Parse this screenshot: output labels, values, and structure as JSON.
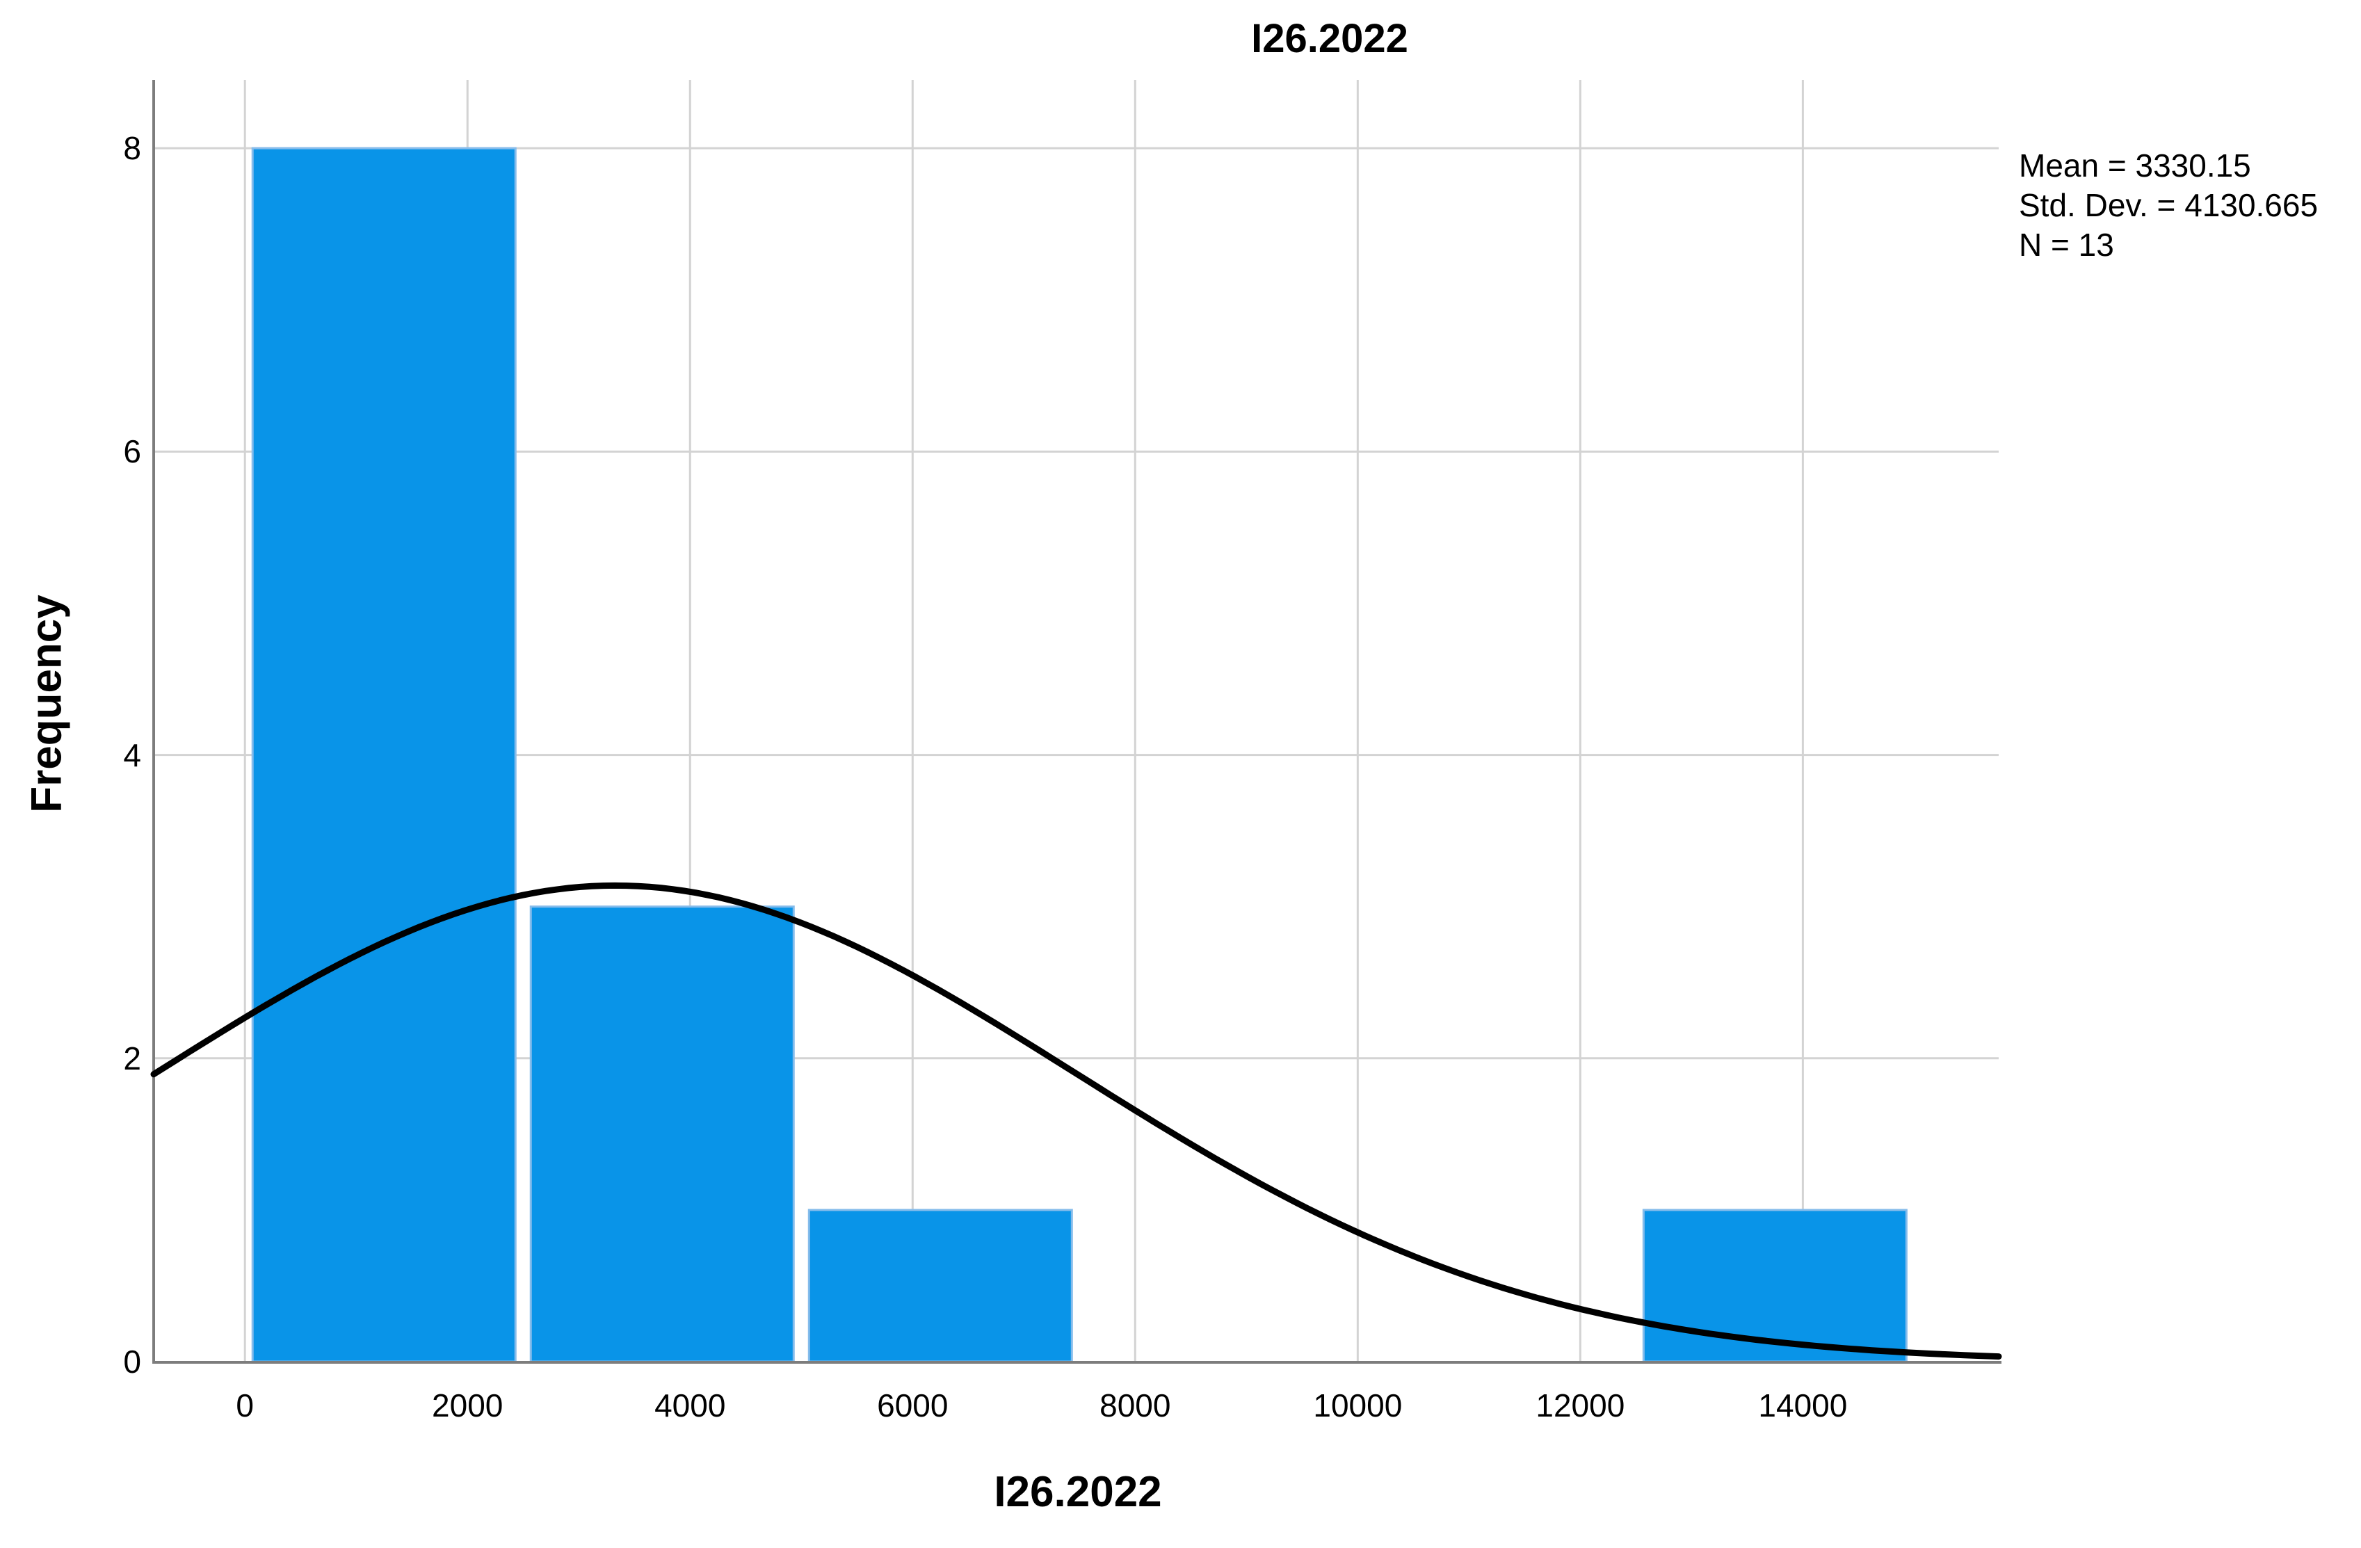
{
  "chart_data": {
    "type": "bar",
    "subtype": "histogram-with-normal-curve",
    "title": "I26.2022",
    "xlabel": "I26.2022",
    "ylabel": "Frequency",
    "x_ticks": [
      0,
      2000,
      4000,
      6000,
      8000,
      10000,
      12000,
      14000
    ],
    "y_ticks": [
      0,
      2,
      4,
      6,
      8
    ],
    "xlim": [
      -820,
      15760
    ],
    "ylim": [
      0,
      8.45
    ],
    "grid": true,
    "bins": [
      {
        "start": 0,
        "end": 2500,
        "count": 8
      },
      {
        "start": 2500,
        "end": 5000,
        "count": 3
      },
      {
        "start": 5000,
        "end": 7500,
        "count": 1
      },
      {
        "start": 7500,
        "end": 10000,
        "count": 0
      },
      {
        "start": 10000,
        "end": 12500,
        "count": 0
      },
      {
        "start": 12500,
        "end": 15000,
        "count": 1
      }
    ],
    "normal_curve": {
      "mean": 3330.15,
      "std_dev": 4130.665,
      "n": 13,
      "bin_width": 2500
    },
    "stats_annotation": {
      "mean": "Mean = 3330.15",
      "std_dev": "Std. Dev. = 4130.665",
      "n": "N = 13"
    },
    "colors": {
      "bar_fill": "#0994E8",
      "bar_border": "#86BCEB",
      "curve": "#000000",
      "gridline": "#D3D3D3",
      "axis": "#7D7D7D",
      "text": "#000000",
      "background": "#FFFFFF"
    }
  }
}
